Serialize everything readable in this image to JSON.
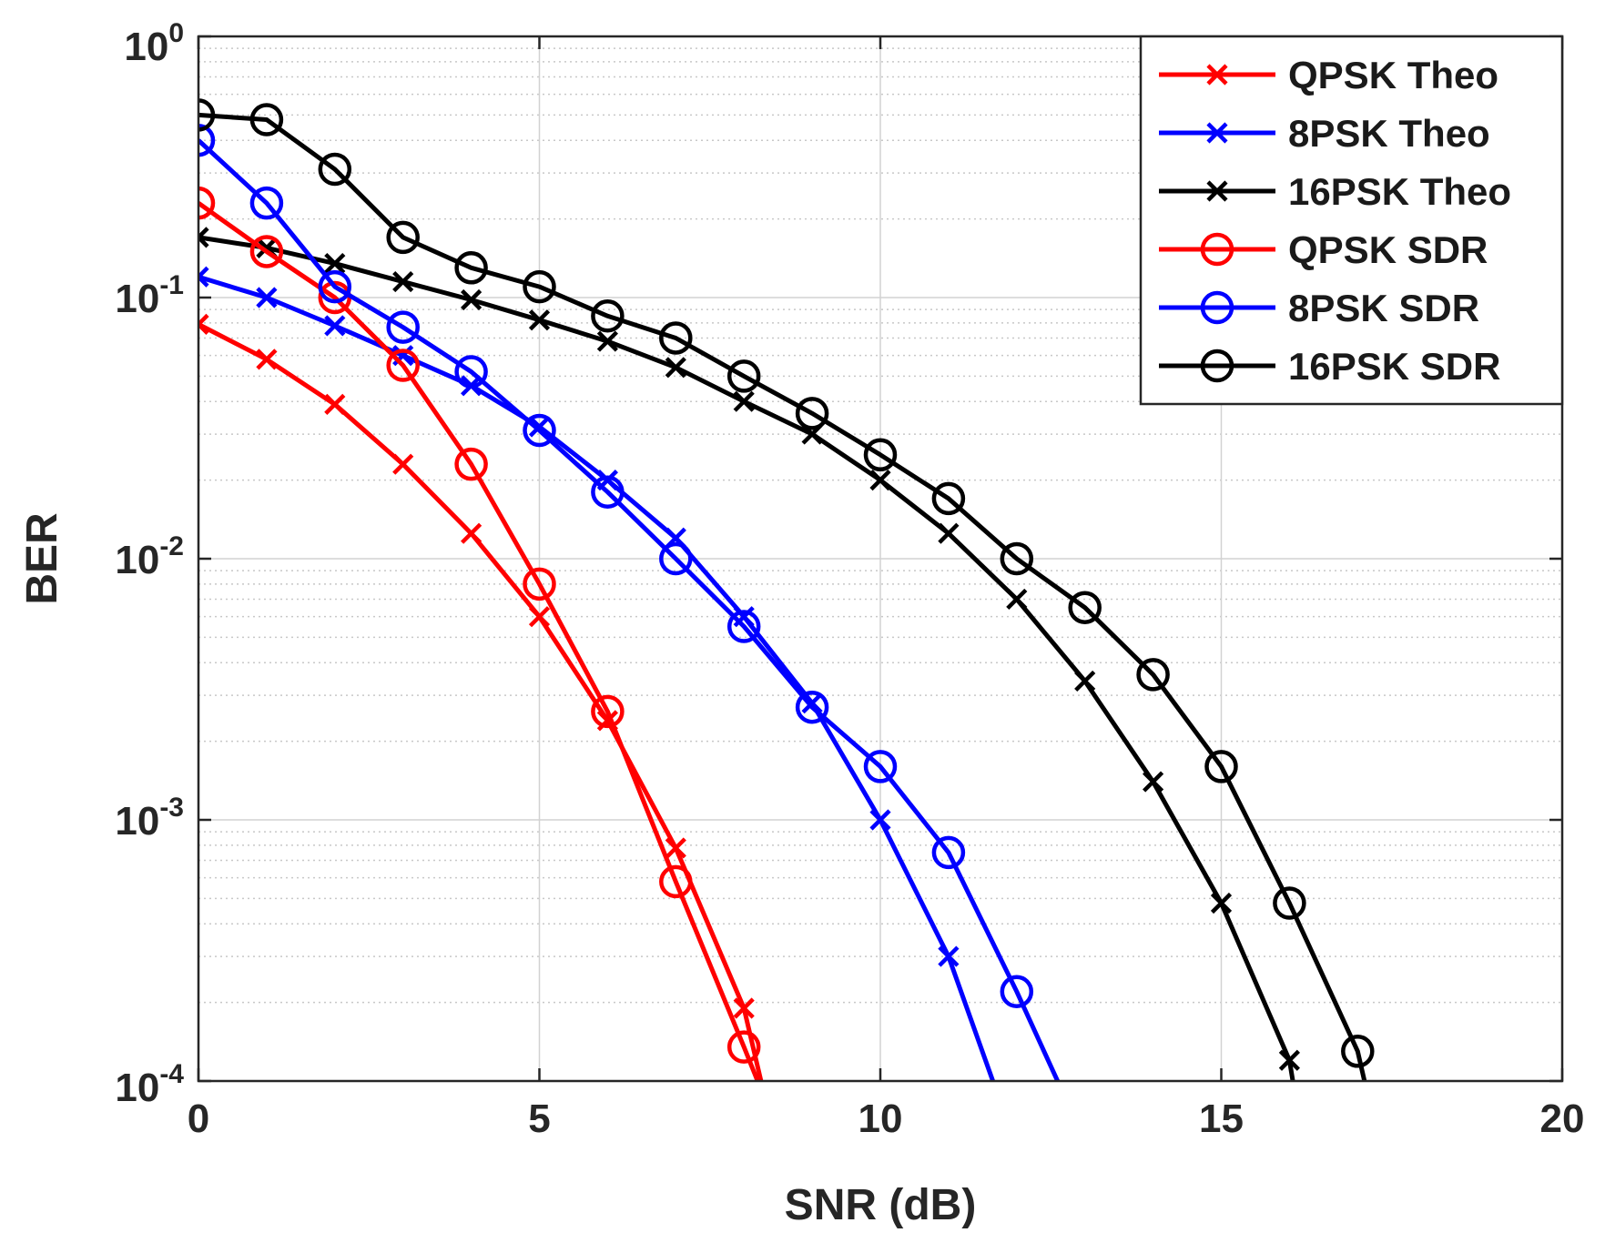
{
  "chart_data": {
    "type": "line",
    "title": "",
    "xlabel": "SNR (dB)",
    "ylabel": "BER",
    "xscale": "linear",
    "yscale": "log",
    "xlim": [
      0,
      20
    ],
    "ylim": [
      0.0001,
      1
    ],
    "xticks": [
      0,
      5,
      10,
      15,
      20
    ],
    "xtick_labels": [
      "0",
      "5",
      "10",
      "15",
      "20"
    ],
    "yticks": [
      1,
      0.1,
      0.01,
      0.001,
      0.0001
    ],
    "ytick_labels": [
      {
        "base": "10",
        "exp": "0"
      },
      {
        "base": "10",
        "exp": "-1"
      },
      {
        "base": "10",
        "exp": "-2"
      },
      {
        "base": "10",
        "exp": "-3"
      },
      {
        "base": "10",
        "exp": "-4"
      }
    ],
    "grid": true,
    "minor_grid": true,
    "legend_position": "top-right",
    "series": [
      {
        "name": "QPSK Theo",
        "color": "#ff0000",
        "marker": "x",
        "x": [
          0,
          1,
          2,
          3,
          4,
          5,
          6,
          7,
          8,
          8.25
        ],
        "y": [
          0.079,
          0.058,
          0.039,
          0.023,
          0.0125,
          0.006,
          0.0024,
          0.00078,
          0.00019,
          0.0001
        ]
      },
      {
        "name": "8PSK Theo",
        "color": "#0000ff",
        "marker": "x",
        "x": [
          0,
          1,
          2,
          3,
          4,
          5,
          6,
          7,
          8,
          9,
          10,
          11,
          11.65
        ],
        "y": [
          0.12,
          0.1,
          0.078,
          0.06,
          0.046,
          0.032,
          0.02,
          0.012,
          0.006,
          0.0028,
          0.001,
          0.0003,
          0.0001
        ]
      },
      {
        "name": "16PSK Theo",
        "color": "#000000",
        "marker": "x",
        "x": [
          0,
          1,
          2,
          3,
          4,
          5,
          6,
          7,
          8,
          9,
          10,
          11,
          12,
          13,
          14,
          15,
          16,
          16.05
        ],
        "y": [
          0.17,
          0.155,
          0.135,
          0.115,
          0.098,
          0.082,
          0.068,
          0.054,
          0.04,
          0.03,
          0.02,
          0.0125,
          0.007,
          0.0034,
          0.0014,
          0.00048,
          0.00012,
          0.0001
        ]
      },
      {
        "name": "QPSK SDR",
        "color": "#ff0000",
        "marker": "o",
        "x": [
          0,
          1,
          2,
          3,
          4,
          5,
          6,
          7,
          8,
          8.2
        ],
        "y": [
          0.23,
          0.15,
          0.1,
          0.055,
          0.023,
          0.008,
          0.0026,
          0.00058,
          0.000135,
          0.0001
        ]
      },
      {
        "name": "8PSK SDR",
        "color": "#0000ff",
        "marker": "o",
        "x": [
          0,
          1,
          2,
          3,
          4,
          5,
          6,
          7,
          8,
          9,
          10,
          11,
          12,
          12.6
        ],
        "y": [
          0.4,
          0.23,
          0.11,
          0.077,
          0.052,
          0.031,
          0.018,
          0.01,
          0.0055,
          0.0027,
          0.0016,
          0.00075,
          0.00022,
          0.0001
        ]
      },
      {
        "name": "16PSK SDR",
        "color": "#000000",
        "marker": "o",
        "x": [
          0,
          1,
          2,
          3,
          4,
          5,
          6,
          7,
          8,
          9,
          10,
          11,
          12,
          13,
          14,
          15,
          16,
          17,
          17.1
        ],
        "y": [
          0.5,
          0.48,
          0.31,
          0.17,
          0.13,
          0.11,
          0.085,
          0.07,
          0.05,
          0.036,
          0.025,
          0.017,
          0.01,
          0.0065,
          0.0036,
          0.0016,
          0.00048,
          0.00013,
          0.0001
        ]
      }
    ]
  }
}
